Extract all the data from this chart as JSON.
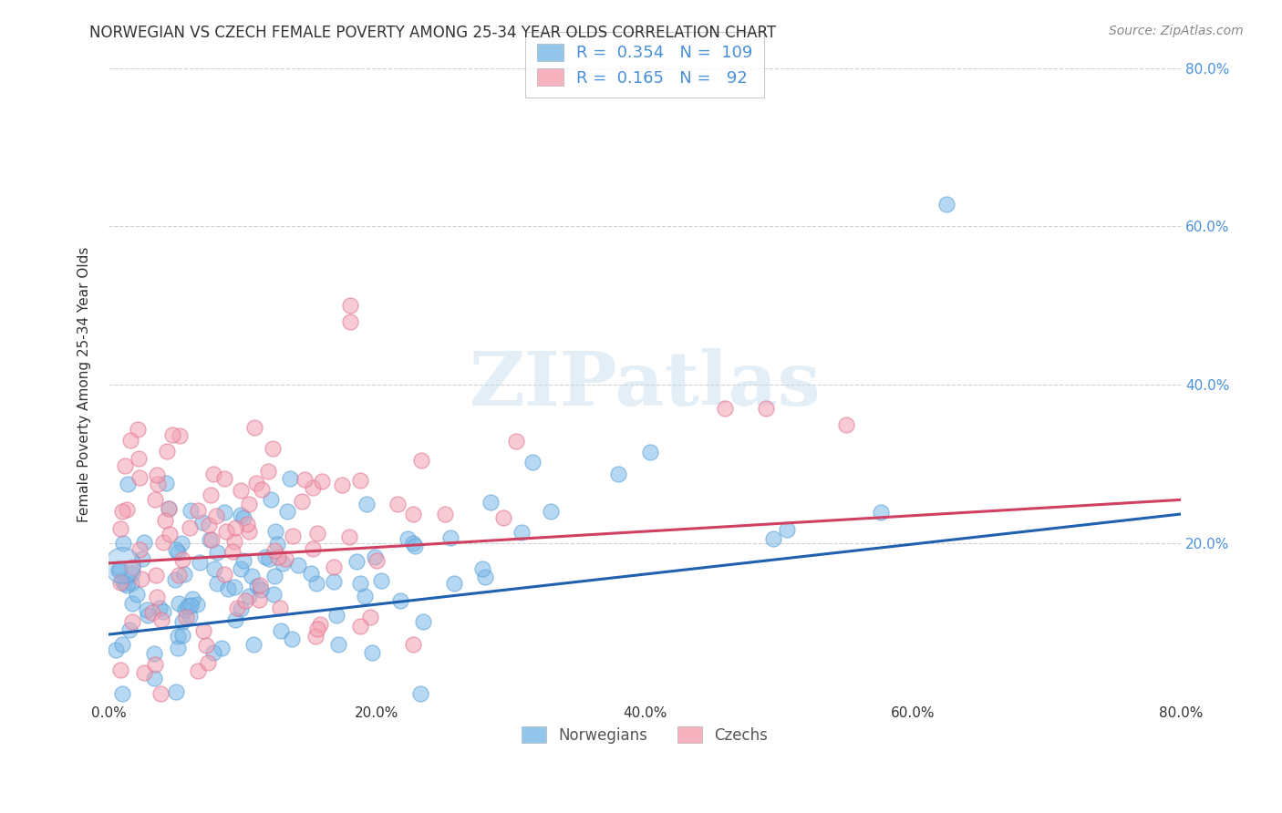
{
  "title": "NORWEGIAN VS CZECH FEMALE POVERTY AMONG 25-34 YEAR OLDS CORRELATION CHART",
  "source": "Source: ZipAtlas.com",
  "ylabel": "Female Poverty Among 25-34 Year Olds",
  "xlim": [
    0.0,
    0.8
  ],
  "ylim": [
    0.0,
    0.8
  ],
  "xticks": [
    0.0,
    0.2,
    0.4,
    0.6,
    0.8
  ],
  "yticks": [
    0.0,
    0.2,
    0.4,
    0.6,
    0.8
  ],
  "xticklabels": [
    "0.0%",
    "20.0%",
    "40.0%",
    "60.0%",
    "80.0%"
  ],
  "yticklabels": [
    "",
    "20.0%",
    "40.0%",
    "60.0%",
    "80.0%"
  ],
  "norwegian_color": "#7ab8e8",
  "norwegian_edge": "#5a9fd4",
  "czech_color": "#f4a0b0",
  "czech_edge": "#e07090",
  "nor_line_color": "#2060b0",
  "cze_line_color": "#d04060",
  "norwegian_R": 0.354,
  "norwegian_N": 109,
  "czech_R": 0.165,
  "czech_N": 92,
  "watermark_text": "ZIPatlas",
  "grid_color": "#cccccc",
  "background_color": "#ffffff",
  "title_fontsize": 12,
  "axis_label_fontsize": 11,
  "tick_fontsize": 11,
  "tick_color": "#4a90d9",
  "source_color": "#888888",
  "legend_fontsize": 13,
  "legend_text_color": "#4a90d9",
  "legend_number_color": "#4a90d9",
  "nor_trend_intercept": 0.085,
  "nor_trend_slope": 0.19,
  "cze_trend_intercept": 0.175,
  "cze_trend_slope": 0.1
}
